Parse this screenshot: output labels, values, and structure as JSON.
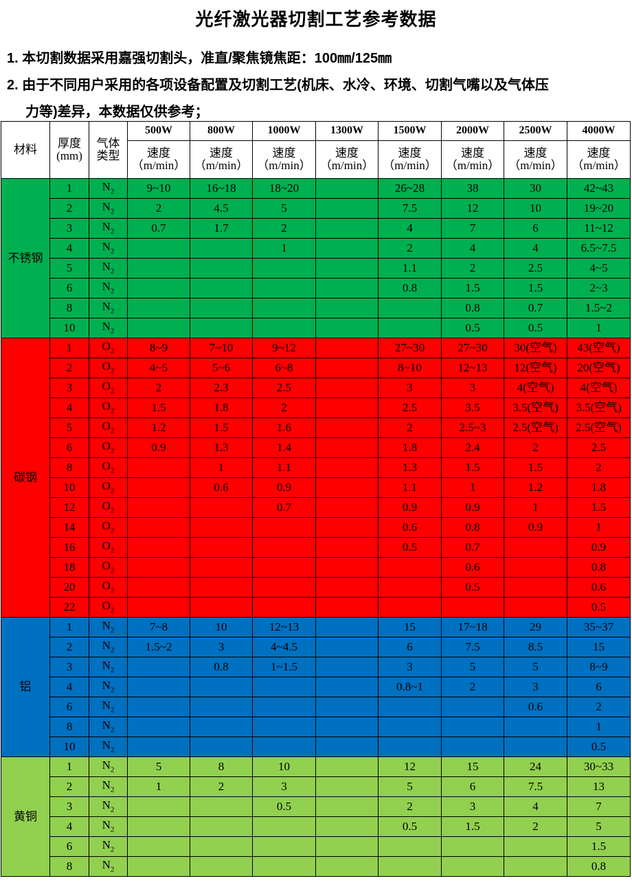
{
  "title": "光纤激光器切割工艺参考数据",
  "notes": {
    "line1": "1. 本切割数据采用嘉强切割头，准直/聚焦镜焦距：100㎜/125㎜",
    "line2": "2. 由于不同用户采用的各项设备配置及切割工艺(机床、水冷、环境、切割气嘴以及气体压",
    "line2_cont": "力等)差异，本数据仅供参考；"
  },
  "table": {
    "header": {
      "material": "材料",
      "thickness": "厚度",
      "thickness_unit": "(mm)",
      "gas": "气体",
      "gas2": "类型",
      "speed": "速度",
      "speed_unit": "（m/min）",
      "powers": [
        "500W",
        "800W",
        "1000W",
        "1300W",
        "1500W",
        "2000W",
        "2500W",
        "4000W"
      ]
    },
    "groups": [
      {
        "material": "不锈钢",
        "color": "#00b050",
        "gas": "N",
        "gas_sub": "2",
        "rows": [
          {
            "t": "1",
            "v": [
              "9~10",
              "16~18",
              "18~20",
              "",
              "26~28",
              "38",
              "30",
              "42~43"
            ]
          },
          {
            "t": "2",
            "v": [
              "2",
              "4.5",
              "5",
              "",
              "7.5",
              "12",
              "10",
              "19~20"
            ]
          },
          {
            "t": "3",
            "v": [
              "0.7",
              "1.7",
              "2",
              "",
              "4",
              "7",
              "6",
              "11~12"
            ]
          },
          {
            "t": "4",
            "v": [
              "",
              "",
              "1",
              "",
              "2",
              "4",
              "4",
              "6.5~7.5"
            ]
          },
          {
            "t": "5",
            "v": [
              "",
              "",
              "",
              "",
              "1.1",
              "2",
              "2.5",
              "4~5"
            ]
          },
          {
            "t": "6",
            "v": [
              "",
              "",
              "",
              "",
              "0.8",
              "1.5",
              "1.5",
              "2~3"
            ]
          },
          {
            "t": "8",
            "v": [
              "",
              "",
              "",
              "",
              "",
              "0.8",
              "0.7",
              "1.5~2"
            ]
          },
          {
            "t": "10",
            "v": [
              "",
              "",
              "",
              "",
              "",
              "0.5",
              "0.5",
              "1"
            ]
          }
        ]
      },
      {
        "material": "碳钢",
        "color": "#ff0000",
        "gas": "O",
        "gas_sub": "2",
        "rows": [
          {
            "t": "1",
            "v": [
              "8~9",
              "7~10",
              "9~12",
              "",
              "27~30",
              "27~30",
              "30(空气)",
              "43(空气)"
            ]
          },
          {
            "t": "2",
            "v": [
              "4~5",
              "5~6",
              "6~8",
              "",
              "8~10",
              "12~13",
              "12(空气)",
              "20(空气)"
            ]
          },
          {
            "t": "3",
            "v": [
              "2",
              "2.3",
              "2.5",
              "",
              "3",
              "3",
              "4(空气)",
              "4(空气)"
            ]
          },
          {
            "t": "4",
            "v": [
              "1.5",
              "1.8",
              "2",
              "",
              "2.5",
              "3.5",
              "3.5(空气)",
              "3.5(空气)"
            ]
          },
          {
            "t": "5",
            "v": [
              "1.2",
              "1.5",
              "1.6",
              "",
              "2",
              "2.5~3",
              "2.5(空气)",
              "2.5(空气)"
            ]
          },
          {
            "t": "6",
            "v": [
              "0.9",
              "1.3",
              "1.4",
              "",
              "1.8",
              "2.4",
              "2",
              "2.5"
            ]
          },
          {
            "t": "8",
            "v": [
              "",
              "1",
              "1.1",
              "",
              "1.3",
              "1.5",
              "1.5",
              "2"
            ]
          },
          {
            "t": "10",
            "v": [
              "",
              "0.6",
              "0.9",
              "",
              "1.1",
              "1",
              "1.2",
              "1.8"
            ]
          },
          {
            "t": "12",
            "v": [
              "",
              "",
              "0.7",
              "",
              "0.9",
              "0.9",
              "1",
              "1.5"
            ]
          },
          {
            "t": "14",
            "v": [
              "",
              "",
              "",
              "",
              "0.6",
              "0.8",
              "0.9",
              "1"
            ]
          },
          {
            "t": "16",
            "v": [
              "",
              "",
              "",
              "",
              "0.5",
              "0.7",
              "",
              "0.9"
            ]
          },
          {
            "t": "18",
            "v": [
              "",
              "",
              "",
              "",
              "",
              "0.6",
              "",
              "0.8"
            ]
          },
          {
            "t": "20",
            "v": [
              "",
              "",
              "",
              "",
              "",
              "0.5",
              "",
              "0.6"
            ]
          },
          {
            "t": "22",
            "v": [
              "",
              "",
              "",
              "",
              "",
              "",
              "",
              "0.5"
            ]
          }
        ]
      },
      {
        "material": "铝",
        "color": "#0070c0",
        "gas": "N",
        "gas_sub": "2",
        "rows": [
          {
            "t": "1",
            "v": [
              "7~8",
              "10",
              "12~13",
              "",
              "15",
              "17~18",
              "29",
              "35~37"
            ]
          },
          {
            "t": "2",
            "v": [
              "1.5~2",
              "3",
              "4~4.5",
              "",
              "6",
              "7.5",
              "8.5",
              "15"
            ]
          },
          {
            "t": "3",
            "v": [
              "",
              "0.8",
              "1~1.5",
              "",
              "3",
              "5",
              "5",
              "8~9"
            ]
          },
          {
            "t": "4",
            "v": [
              "",
              "",
              "",
              "",
              "0.8~1",
              "2",
              "3",
              "6"
            ]
          },
          {
            "t": "6",
            "v": [
              "",
              "",
              "",
              "",
              "",
              "",
              "0.6",
              "2"
            ]
          },
          {
            "t": "8",
            "v": [
              "",
              "",
              "",
              "",
              "",
              "",
              "",
              "1"
            ]
          },
          {
            "t": "10",
            "v": [
              "",
              "",
              "",
              "",
              "",
              "",
              "",
              "0.5"
            ]
          }
        ]
      },
      {
        "material": "黄铜",
        "color": "#92d050",
        "gas": "N",
        "gas_sub": "2",
        "rows": [
          {
            "t": "1",
            "v": [
              "5",
              "8",
              "10",
              "",
              "12",
              "15",
              "24",
              "30~33"
            ]
          },
          {
            "t": "2",
            "v": [
              "1",
              "2",
              "3",
              "",
              "5",
              "6",
              "7.5",
              "13"
            ]
          },
          {
            "t": "3",
            "v": [
              "",
              "",
              "0.5",
              "",
              "2",
              "3",
              "4",
              "7"
            ]
          },
          {
            "t": "4",
            "v": [
              "",
              "",
              "",
              "",
              "0.5",
              "1.5",
              "2",
              "5"
            ]
          },
          {
            "t": "6",
            "v": [
              "",
              "",
              "",
              "",
              "",
              "",
              "",
              "1.5"
            ]
          },
          {
            "t": "8",
            "v": [
              "",
              "",
              "",
              "",
              "",
              "",
              "",
              "0.8"
            ]
          }
        ]
      }
    ]
  }
}
